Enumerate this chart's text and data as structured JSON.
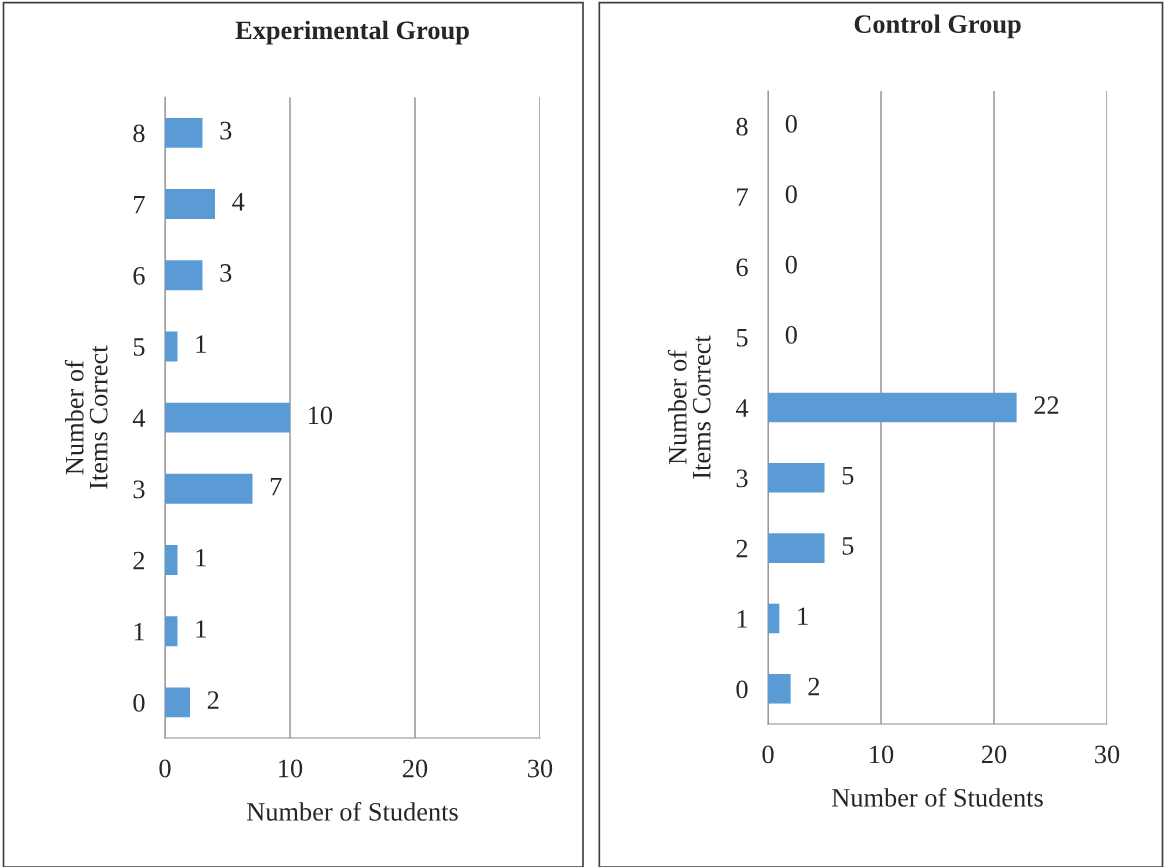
{
  "chart_data": [
    {
      "type": "bar",
      "orientation": "horizontal",
      "title": "Experimental Group",
      "xlabel": "Number of Students",
      "ylabel": "Number of\nItems Correct",
      "categories": [
        "8",
        "7",
        "6",
        "5",
        "4",
        "3",
        "2",
        "1",
        "0"
      ],
      "series": [
        {
          "color": "#5b9bd5",
          "values": [
            3,
            4,
            3,
            1,
            10,
            7,
            1,
            1,
            2
          ]
        }
      ],
      "xlim": [
        0,
        30
      ],
      "xticks": [
        0,
        10,
        20,
        30
      ],
      "grid": "x",
      "data_labels": true
    },
    {
      "type": "bar",
      "orientation": "horizontal",
      "title": "Control Group",
      "xlabel": "Number of Students",
      "ylabel": "Number of\nItems Correct",
      "categories": [
        "8",
        "7",
        "6",
        "5",
        "4",
        "3",
        "2",
        "1",
        "0"
      ],
      "series": [
        {
          "color": "#5b9bd5",
          "values": [
            0,
            0,
            0,
            0,
            22,
            5,
            5,
            1,
            2
          ]
        }
      ],
      "xlim": [
        0,
        30
      ],
      "xticks": [
        0,
        10,
        20,
        30
      ],
      "grid": "x",
      "data_labels": true
    }
  ]
}
